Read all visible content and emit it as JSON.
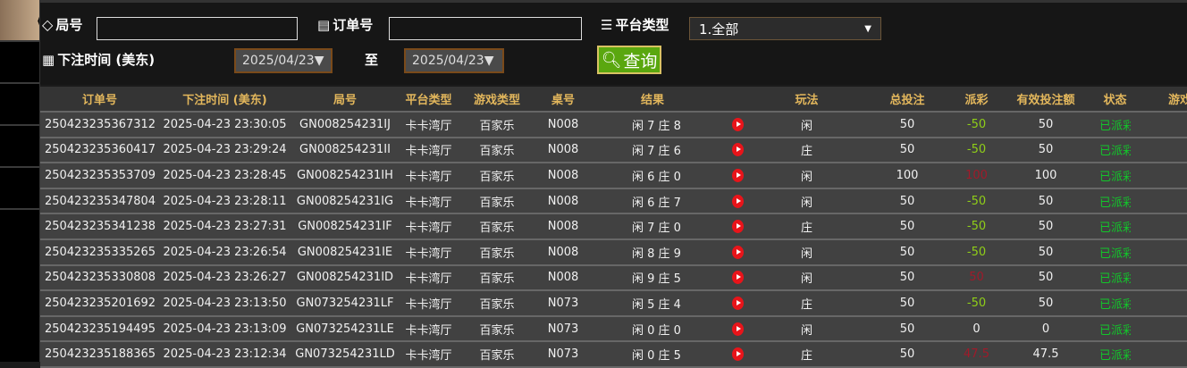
{
  "filters": {
    "round_label": "局号",
    "round_value": "",
    "order_label": "订单号",
    "order_value": "",
    "platform_label": "平台类型",
    "platform_selected": "1.全部",
    "time_label": "下注时间 (美东)",
    "date_from": "2025/04/23▼",
    "to_label": "至",
    "date_to": "2025/04/23▼",
    "query_label": "查询"
  },
  "colors": {
    "accent": "#e3b75c",
    "query_button": "#5aa70f",
    "payout_positive": "#8fce18",
    "payout_negative": "#a01a2a",
    "status": "#12c62a"
  },
  "table": {
    "headers": [
      "订单号",
      "下注时间 (美东)",
      "局号",
      "平台类型",
      "游戏类型",
      "桌号",
      "结果",
      "",
      "玩法",
      "总投注",
      "派彩",
      "有效投注额",
      "状态",
      "游戏"
    ],
    "rows": [
      {
        "order": "250423235367312",
        "time": "2025-04-23 23:30:05",
        "round": "GN008254231IJ",
        "platform": "卡卡湾厅",
        "game": "百家乐",
        "table": "N008",
        "result": "闲 7 庄 8",
        "bet_type": "闲",
        "total": "50",
        "payout": "-50",
        "payout_color": "pos",
        "valid": "50",
        "status": "已派彩"
      },
      {
        "order": "250423235360417",
        "time": "2025-04-23 23:29:24",
        "round": "GN008254231II",
        "platform": "卡卡湾厅",
        "game": "百家乐",
        "table": "N008",
        "result": "闲 7 庄 6",
        "bet_type": "庄",
        "total": "50",
        "payout": "-50",
        "payout_color": "pos",
        "valid": "50",
        "status": "已派彩"
      },
      {
        "order": "250423235353709",
        "time": "2025-04-23 23:28:45",
        "round": "GN008254231IH",
        "platform": "卡卡湾厅",
        "game": "百家乐",
        "table": "N008",
        "result": "闲 6 庄 0",
        "bet_type": "闲",
        "total": "100",
        "payout": "100",
        "payout_color": "neg",
        "valid": "100",
        "status": "已派彩"
      },
      {
        "order": "250423235347804",
        "time": "2025-04-23 23:28:11",
        "round": "GN008254231IG",
        "platform": "卡卡湾厅",
        "game": "百家乐",
        "table": "N008",
        "result": "闲 6 庄 7",
        "bet_type": "闲",
        "total": "50",
        "payout": "-50",
        "payout_color": "pos",
        "valid": "50",
        "status": "已派彩"
      },
      {
        "order": "250423235341238",
        "time": "2025-04-23 23:27:31",
        "round": "GN008254231IF",
        "platform": "卡卡湾厅",
        "game": "百家乐",
        "table": "N008",
        "result": "闲 7 庄 0",
        "bet_type": "庄",
        "total": "50",
        "payout": "-50",
        "payout_color": "pos",
        "valid": "50",
        "status": "已派彩"
      },
      {
        "order": "250423235335265",
        "time": "2025-04-23 23:26:54",
        "round": "GN008254231IE",
        "platform": "卡卡湾厅",
        "game": "百家乐",
        "table": "N008",
        "result": "闲 8 庄 9",
        "bet_type": "闲",
        "total": "50",
        "payout": "-50",
        "payout_color": "pos",
        "valid": "50",
        "status": "已派彩"
      },
      {
        "order": "250423235330808",
        "time": "2025-04-23 23:26:27",
        "round": "GN008254231ID",
        "platform": "卡卡湾厅",
        "game": "百家乐",
        "table": "N008",
        "result": "闲 9 庄 5",
        "bet_type": "闲",
        "total": "50",
        "payout": "50",
        "payout_color": "neg",
        "valid": "50",
        "status": "已派彩"
      },
      {
        "order": "250423235201692",
        "time": "2025-04-23 23:13:50",
        "round": "GN073254231LF",
        "platform": "卡卡湾厅",
        "game": "百家乐",
        "table": "N073",
        "result": "闲 5 庄 4",
        "bet_type": "庄",
        "total": "50",
        "payout": "-50",
        "payout_color": "pos",
        "valid": "50",
        "status": "已派彩"
      },
      {
        "order": "250423235194495",
        "time": "2025-04-23 23:13:09",
        "round": "GN073254231LE",
        "platform": "卡卡湾厅",
        "game": "百家乐",
        "table": "N073",
        "result": "闲 0 庄 0",
        "bet_type": "闲",
        "total": "50",
        "payout": "0",
        "payout_color": "zero",
        "valid": "0",
        "status": "已派彩"
      },
      {
        "order": "250423235188365",
        "time": "2025-04-23 23:12:34",
        "round": "GN073254231LD",
        "platform": "卡卡湾厅",
        "game": "百家乐",
        "table": "N073",
        "result": "闲 0 庄 5",
        "bet_type": "庄",
        "total": "50",
        "payout": "47.5",
        "payout_color": "neg",
        "valid": "47.5",
        "status": "已派彩"
      }
    ]
  }
}
